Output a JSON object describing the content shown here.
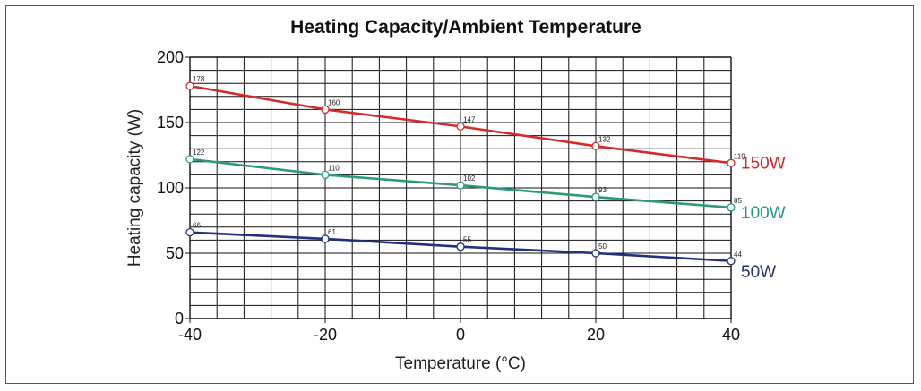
{
  "chart_data": {
    "type": "line",
    "title": "Heating Capacity/Ambient Temperature",
    "xlabel": "Temperature (°C)",
    "ylabel": "Heating capacity (W)",
    "x": [
      -40,
      -20,
      0,
      20,
      40
    ],
    "xlim": [
      -40,
      40
    ],
    "ylim": [
      0,
      200
    ],
    "xticks": [
      "-40",
      "-20",
      "0",
      "20",
      "40"
    ],
    "yticks": [
      "0",
      "50",
      "100",
      "150",
      "200"
    ],
    "grid": true,
    "series": [
      {
        "name": "150W",
        "color": "#d42a2a",
        "values": [
          178,
          160,
          147,
          132,
          119
        ]
      },
      {
        "name": "100W",
        "color": "#2a9a7e",
        "values": [
          122,
          110,
          102,
          93,
          85
        ]
      },
      {
        "name": "50W",
        "color": "#23307f",
        "values": [
          66,
          61,
          55,
          50,
          44
        ]
      }
    ],
    "legend": "right"
  }
}
